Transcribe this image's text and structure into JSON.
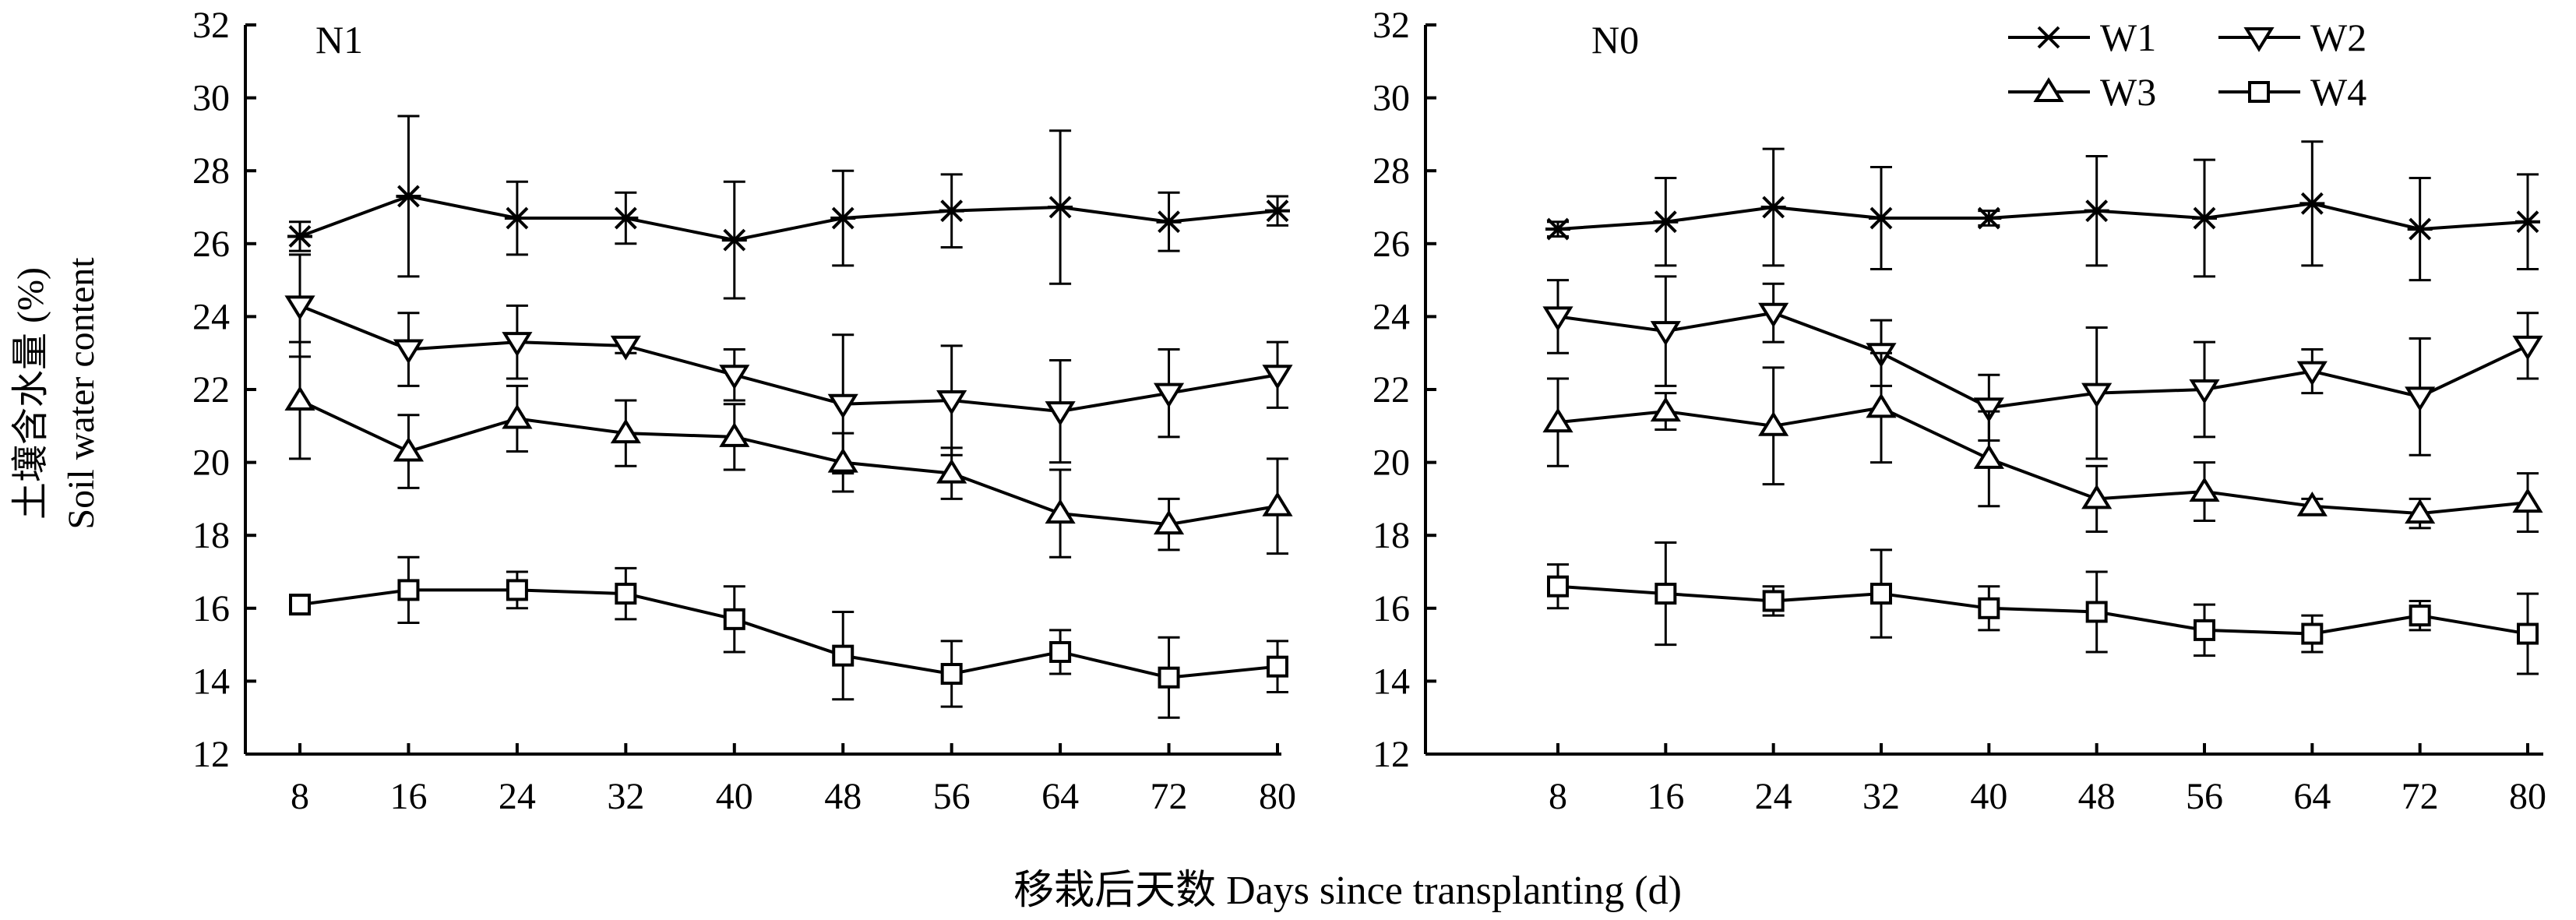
{
  "chart_data": [
    {
      "type": "line",
      "panel_label": "N1",
      "x": [
        8,
        16,
        24,
        32,
        40,
        48,
        56,
        64,
        72,
        80
      ],
      "ylim": [
        12,
        32
      ],
      "yticks": [
        12,
        14,
        16,
        18,
        20,
        22,
        24,
        26,
        28,
        30,
        32
      ],
      "series": [
        {
          "name": "W1",
          "marker": "x",
          "values": [
            26.2,
            27.3,
            26.7,
            26.7,
            26.1,
            26.7,
            26.9,
            27.0,
            26.6,
            26.9
          ],
          "errors": [
            0.4,
            2.2,
            1.0,
            0.7,
            1.6,
            1.3,
            1.0,
            2.1,
            0.8,
            0.4
          ]
        },
        {
          "name": "W2",
          "marker": "triangle-down",
          "values": [
            24.3,
            23.1,
            23.3,
            23.2,
            22.4,
            21.6,
            21.7,
            21.4,
            21.9,
            22.4
          ],
          "errors": [
            1.4,
            1.0,
            1.0,
            0.2,
            0.7,
            1.9,
            1.5,
            1.4,
            1.2,
            0.9
          ]
        },
        {
          "name": "W3",
          "marker": "triangle-up",
          "values": [
            21.7,
            20.3,
            21.2,
            20.8,
            20.7,
            20.0,
            19.7,
            18.6,
            18.3,
            18.8
          ],
          "errors": [
            1.6,
            1.0,
            0.9,
            0.9,
            0.9,
            0.8,
            0.7,
            1.2,
            0.7,
            1.3
          ]
        },
        {
          "name": "W4",
          "marker": "square",
          "values": [
            16.1,
            16.5,
            16.5,
            16.4,
            15.7,
            14.7,
            14.2,
            14.8,
            14.1,
            14.4
          ],
          "errors": [
            0.2,
            0.9,
            0.5,
            0.7,
            0.9,
            1.2,
            0.9,
            0.6,
            1.1,
            0.7
          ]
        }
      ]
    },
    {
      "type": "line",
      "panel_label": "N0",
      "x": [
        8,
        16,
        24,
        32,
        40,
        48,
        56,
        64,
        72,
        80
      ],
      "ylim": [
        12,
        32
      ],
      "yticks": [
        12,
        14,
        16,
        18,
        20,
        22,
        24,
        26,
        28,
        30,
        32
      ],
      "series": [
        {
          "name": "W1",
          "marker": "x",
          "values": [
            26.4,
            26.6,
            27.0,
            26.7,
            26.7,
            26.9,
            26.7,
            27.1,
            26.4,
            26.6
          ],
          "errors": [
            0.2,
            1.2,
            1.6,
            1.4,
            0.2,
            1.5,
            1.6,
            1.7,
            1.4,
            1.3
          ]
        },
        {
          "name": "W2",
          "marker": "triangle-down",
          "values": [
            24.0,
            23.6,
            24.1,
            23.0,
            21.5,
            21.9,
            22.0,
            22.5,
            21.8,
            23.2
          ],
          "errors": [
            1.0,
            1.5,
            0.8,
            0.9,
            0.9,
            1.8,
            1.3,
            0.6,
            1.6,
            0.9
          ]
        },
        {
          "name": "W3",
          "marker": "triangle-up",
          "values": [
            21.1,
            21.4,
            21.0,
            21.5,
            20.1,
            19.0,
            19.2,
            18.8,
            18.6,
            18.9
          ],
          "errors": [
            1.2,
            0.5,
            1.6,
            1.5,
            1.3,
            0.9,
            0.8,
            0.2,
            0.4,
            0.8
          ]
        },
        {
          "name": "W4",
          "marker": "square",
          "values": [
            16.6,
            16.4,
            16.2,
            16.4,
            16.0,
            15.9,
            15.4,
            15.3,
            15.8,
            15.3
          ],
          "errors": [
            0.6,
            1.4,
            0.4,
            1.2,
            0.6,
            1.1,
            0.7,
            0.5,
            0.4,
            1.1
          ]
        }
      ]
    }
  ],
  "axes": {
    "ylabel_cn": "土壤含水量 (%)",
    "ylabel_en": "Soil water content",
    "xlabel": "移栽后天数  Days since transplanting (d)"
  },
  "legend": {
    "placement": "top-right of N0 panel",
    "entries": [
      "W1",
      "W2",
      "W3",
      "W4"
    ]
  }
}
